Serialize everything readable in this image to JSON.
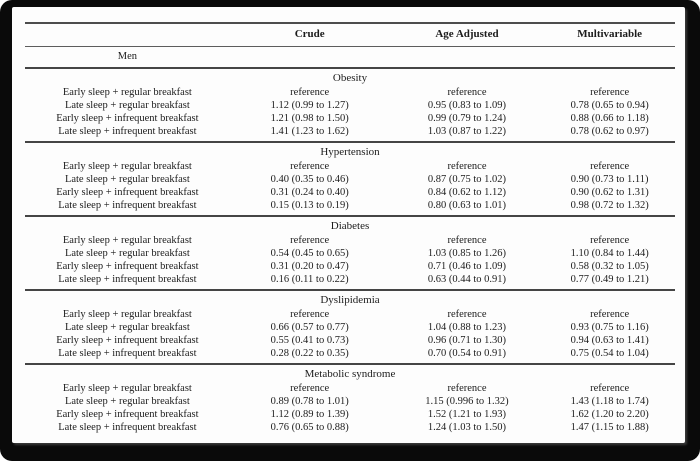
{
  "colors": {
    "frame": "#0a0a0a",
    "page": "#fdfdfd",
    "text": "#1c1c1c",
    "rule_heavy": "#454545",
    "rule_light": "#5d5d5d"
  },
  "table": {
    "columns": [
      "",
      "Crude",
      "Age Adjusted",
      "Multivariable"
    ],
    "group_label": "Men",
    "row_labels": [
      "Early sleep + regular breakfast",
      "Late sleep + regular breakfast",
      "Early sleep + infrequent breakfast",
      "Late sleep + infrequent breakfast"
    ],
    "sections": [
      {
        "title": "Obesity",
        "rows": [
          [
            "reference",
            "reference",
            "reference"
          ],
          [
            "1.12 (0.99 to 1.27)",
            "0.95 (0.83 to 1.09)",
            "0.78 (0.65 to 0.94)"
          ],
          [
            "1.21 (0.98 to 1.50)",
            "0.99 (0.79 to 1.24)",
            "0.88 (0.66 to 1.18)"
          ],
          [
            "1.41 (1.23 to 1.62)",
            "1.03 (0.87 to 1.22)",
            "0.78 (0.62 to 0.97)"
          ]
        ]
      },
      {
        "title": "Hypertension",
        "rows": [
          [
            "reference",
            "reference",
            "reference"
          ],
          [
            "0.40 (0.35 to 0.46)",
            "0.87 (0.75 to 1.02)",
            "0.90 (0.73 to 1.11)"
          ],
          [
            "0.31 (0.24 to 0.40)",
            "0.84 (0.62 to 1.12)",
            "0.90 (0.62 to 1.31)"
          ],
          [
            "0.15 (0.13 to 0.19)",
            "0.80 (0.63 to 1.01)",
            "0.98 (0.72 to 1.32)"
          ]
        ]
      },
      {
        "title": "Diabetes",
        "rows": [
          [
            "reference",
            "reference",
            "reference"
          ],
          [
            "0.54 (0.45 to 0.65)",
            "1.03 (0.85 to 1.26)",
            "1.10 (0.84 to 1.44)"
          ],
          [
            "0.31 (0.20 to 0.47)",
            "0.71 (0.46 to 1.09)",
            "0.58 (0.32 to 1.05)"
          ],
          [
            "0.16 (0.11 to 0.22)",
            "0.63 (0.44 to 0.91)",
            "0.77 (0.49 to 1.21)"
          ]
        ]
      },
      {
        "title": "Dyslipidemia",
        "rows": [
          [
            "reference",
            "reference",
            "reference"
          ],
          [
            "0.66 (0.57 to 0.77)",
            "1.04 (0.88 to 1.23)",
            "0.93 (0.75 to 1.16)"
          ],
          [
            "0.55 (0.41 to 0.73)",
            "0.96 (0.71 to 1.30)",
            "0.94 (0.63 to 1.41)"
          ],
          [
            "0.28 (0.22 to 0.35)",
            "0.70 (0.54 to 0.91)",
            "0.75 (0.54 to 1.04)"
          ]
        ]
      },
      {
        "title": "Metabolic syndrome",
        "rows": [
          [
            "reference",
            "reference",
            "reference"
          ],
          [
            "0.89 (0.78 to 1.01)",
            "1.15 (0.996 to 1.32)",
            "1.43 (1.18 to 1.74)"
          ],
          [
            "1.12 (0.89 to 1.39)",
            "1.52 (1.21 to 1.93)",
            "1.62 (1.20 to 2.20)"
          ],
          [
            "0.76 (0.65 to 0.88)",
            "1.24 (1.03 to 1.50)",
            "1.47 (1.15 to 1.88)"
          ]
        ]
      }
    ]
  }
}
